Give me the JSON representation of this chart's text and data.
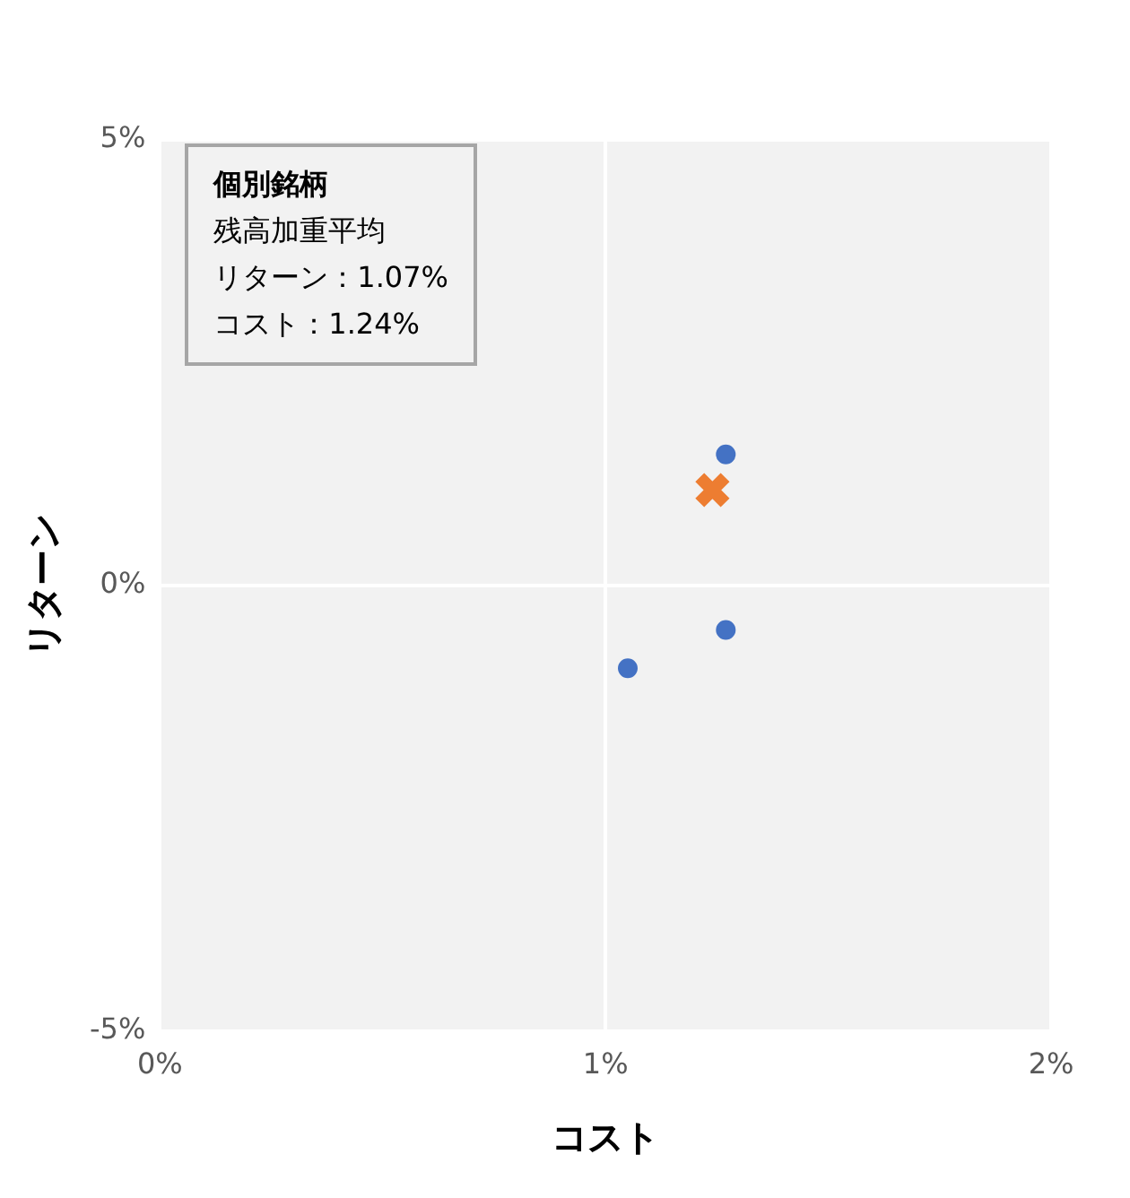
{
  "chart_data": {
    "type": "scatter",
    "xlabel": "コスト",
    "ylabel": "リターン",
    "xlim": [
      0,
      2
    ],
    "xticks": [
      {
        "value": 0,
        "label": "0%"
      },
      {
        "value": 1,
        "label": "1%"
      },
      {
        "value": 2,
        "label": "2%"
      }
    ],
    "ylim": [
      -5,
      5
    ],
    "yticks": [
      {
        "value": -5,
        "label": "-5%"
      },
      {
        "value": 0,
        "label": "0%"
      },
      {
        "value": 5,
        "label": "5%"
      }
    ],
    "grid": true,
    "legend": false,
    "series": [
      {
        "color": "#4472c4",
        "marker": "circle",
        "x": [
          1.27,
          1.27,
          1.05
        ],
        "values": [
          1.47,
          -0.5,
          -0.93
        ]
      },
      {
        "color": "#ed7d31",
        "marker": "cross",
        "x": [
          1.24
        ],
        "values": [
          1.07
        ]
      }
    ],
    "annotations": [
      "個別銘柄",
      "残高加重平均",
      "リターン：1.07%",
      "コスト：1.24%"
    ]
  }
}
